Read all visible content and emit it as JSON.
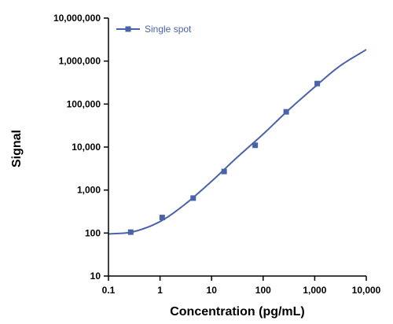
{
  "chart_data": {
    "type": "line",
    "title": "",
    "xlabel": "Concentration (pg/mL)",
    "ylabel": "Signal",
    "x_scale": "log",
    "y_scale": "log",
    "xlim": [
      0.1,
      10000
    ],
    "ylim": [
      10,
      10000000
    ],
    "x_ticks": [
      0.1,
      1,
      10,
      100,
      1000,
      10000
    ],
    "x_tick_labels": [
      "0.1",
      "1",
      "10",
      "100",
      "1,000",
      "10,000"
    ],
    "y_ticks": [
      10,
      100,
      1000,
      10000,
      100000,
      1000000,
      10000000
    ],
    "y_tick_labels": [
      "10",
      "100",
      "1,000",
      "10,000",
      "100,000",
      "1,000,000",
      "10,000,000"
    ],
    "grid": false,
    "legend_position": "top-left",
    "series": [
      {
        "name": "Single spot",
        "color": "#4a63a8",
        "marker": "square",
        "points": {
          "x": [
            0.27,
            1.1,
            4.4,
            17.5,
            70,
            280,
            1120
          ],
          "y": [
            105,
            230,
            650,
            2700,
            11000,
            66000,
            300000
          ]
        },
        "curve": {
          "x": [
            0.1,
            0.3,
            1,
            3,
            10,
            30,
            100,
            300,
            1000,
            3000,
            10000
          ],
          "y": [
            95,
            107,
            185,
            460,
            1600,
            5500,
            20000,
            70000,
            250000,
            750000,
            1850000
          ]
        }
      }
    ]
  }
}
